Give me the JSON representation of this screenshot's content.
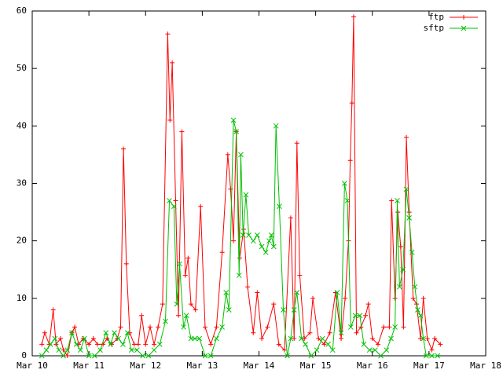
{
  "chart_data": {
    "type": "line",
    "xlim": [
      0,
      8
    ],
    "xticks": [
      {
        "value": 0,
        "label": "Mar 10"
      },
      {
        "value": 1,
        "label": "Mar 11"
      },
      {
        "value": 2,
        "label": "Mar 12"
      },
      {
        "value": 3,
        "label": "Mar 13"
      },
      {
        "value": 4,
        "label": "Mar 14"
      },
      {
        "value": 5,
        "label": "Mar 15"
      },
      {
        "value": 6,
        "label": "Mar 16"
      },
      {
        "value": 7,
        "label": "Mar 17"
      },
      {
        "value": 8,
        "label": "Mar 18"
      }
    ],
    "ylim": [
      0,
      60
    ],
    "yticks": [
      0,
      10,
      20,
      30,
      40,
      50,
      60
    ],
    "legend": "top-right",
    "series": [
      {
        "name": "ftp",
        "color": "#ff0000",
        "marker": "plus",
        "x": [
          0.17,
          0.22,
          0.3,
          0.37,
          0.42,
          0.5,
          0.55,
          0.62,
          0.7,
          0.75,
          0.82,
          0.9,
          1.0,
          1.08,
          1.15,
          1.25,
          1.32,
          1.4,
          1.5,
          1.56,
          1.61,
          1.66,
          1.72,
          1.8,
          1.87,
          1.93,
          2.0,
          2.08,
          2.15,
          2.22,
          2.3,
          2.39,
          2.43,
          2.47,
          2.53,
          2.58,
          2.64,
          2.7,
          2.75,
          2.8,
          2.88,
          2.97,
          3.05,
          3.15,
          3.25,
          3.35,
          3.45,
          3.5,
          3.55,
          3.6,
          3.66,
          3.73,
          3.8,
          3.9,
          3.97,
          4.05,
          4.15,
          4.26,
          4.35,
          4.45,
          4.56,
          4.62,
          4.67,
          4.72,
          4.8,
          4.9,
          4.95,
          5.05,
          5.15,
          5.25,
          5.35,
          5.45,
          5.52,
          5.58,
          5.61,
          5.64,
          5.67,
          5.72,
          5.8,
          5.88,
          5.93,
          6.0,
          6.1,
          6.2,
          6.3,
          6.34,
          6.4,
          6.45,
          6.5,
          6.55,
          6.6,
          6.65,
          6.72,
          6.78,
          6.85,
          6.9,
          6.97,
          7.05,
          7.1,
          7.2
        ],
        "values": [
          2,
          4,
          2,
          8,
          2,
          3,
          1,
          0,
          4,
          5,
          2,
          3,
          2,
          3,
          2,
          2,
          3,
          2,
          3,
          5,
          36,
          16,
          4,
          2,
          2,
          7,
          2,
          5,
          2,
          5,
          9,
          56,
          41,
          51,
          27,
          7,
          39,
          14,
          17,
          9,
          8,
          26,
          5,
          2,
          5,
          18,
          35,
          29,
          20,
          39,
          17,
          22,
          12,
          4,
          11,
          3,
          5,
          9,
          2,
          1,
          24,
          3,
          37,
          14,
          3,
          4,
          10,
          3,
          2,
          4,
          11,
          3,
          10,
          20,
          34,
          44,
          59,
          4,
          5,
          7,
          9,
          3,
          2,
          5,
          5,
          27,
          10,
          25,
          19,
          5,
          38,
          25,
          10,
          9,
          3,
          10,
          3,
          1,
          3,
          2
        ]
      },
      {
        "name": "sftp",
        "color": "#00c000",
        "marker": "cross",
        "x": [
          0.17,
          0.25,
          0.32,
          0.4,
          0.47,
          0.55,
          0.62,
          0.7,
          0.78,
          0.85,
          0.92,
          1.0,
          1.1,
          1.2,
          1.3,
          1.38,
          1.45,
          1.52,
          1.6,
          1.68,
          1.75,
          1.85,
          1.95,
          2.05,
          2.15,
          2.25,
          2.35,
          2.42,
          2.5,
          2.55,
          2.6,
          2.67,
          2.72,
          2.8,
          2.87,
          2.95,
          3.05,
          3.15,
          3.25,
          3.35,
          3.42,
          3.47,
          3.55,
          3.6,
          3.65,
          3.68,
          3.72,
          3.77,
          3.82,
          3.9,
          3.97,
          4.05,
          4.12,
          4.18,
          4.22,
          4.26,
          4.3,
          4.36,
          4.43,
          4.5,
          4.56,
          4.62,
          4.67,
          4.75,
          4.82,
          4.92,
          5.02,
          5.12,
          5.22,
          5.3,
          5.38,
          5.45,
          5.51,
          5.56,
          5.62,
          5.7,
          5.78,
          5.85,
          5.95,
          6.05,
          6.15,
          6.25,
          6.33,
          6.4,
          6.44,
          6.48,
          6.54,
          6.6,
          6.65,
          6.7,
          6.75,
          6.8,
          6.85,
          6.9,
          6.95,
          7.05,
          7.15
        ],
        "values": [
          0,
          1,
          2,
          3,
          1,
          0,
          1,
          4,
          2,
          1,
          3,
          0,
          0,
          1,
          4,
          2,
          4,
          3,
          2,
          4,
          1,
          1,
          0,
          0,
          1,
          2,
          6,
          27,
          26,
          9,
          16,
          5,
          7,
          3,
          3,
          3,
          0,
          0,
          3,
          5,
          11,
          8,
          41,
          39,
          14,
          35,
          21,
          28,
          21,
          20,
          21,
          19,
          18,
          20,
          21,
          19,
          40,
          26,
          8,
          0,
          3,
          8,
          11,
          3,
          2,
          0,
          1,
          3,
          2,
          1,
          11,
          4,
          30,
          27,
          5,
          7,
          7,
          2,
          1,
          1,
          0,
          1,
          3,
          5,
          27,
          12,
          15,
          29,
          24,
          18,
          12,
          8,
          7,
          3,
          0,
          0,
          0
        ]
      }
    ]
  }
}
